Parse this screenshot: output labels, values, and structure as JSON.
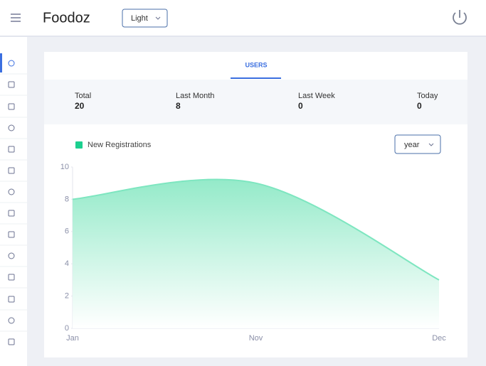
{
  "header": {
    "brand": "Foodoz",
    "theme": "Light"
  },
  "tab": "USERS",
  "stats": [
    {
      "label": "Total",
      "value": 20
    },
    {
      "label": "Last Month",
      "value": 8
    },
    {
      "label": "Last Week",
      "value": 0
    },
    {
      "label": "Today",
      "value": 0
    }
  ],
  "filter": "year",
  "chart_data": {
    "type": "area",
    "categories": [
      "Jan",
      "Nov",
      "Dec"
    ],
    "series": [
      {
        "name": "New Registrations",
        "color": "#1ccf8f",
        "values": [
          8,
          9,
          3
        ]
      }
    ],
    "ylim": [
      0,
      10
    ],
    "yticks": [
      0,
      2,
      4,
      6,
      8,
      10
    ],
    "grid": false
  }
}
